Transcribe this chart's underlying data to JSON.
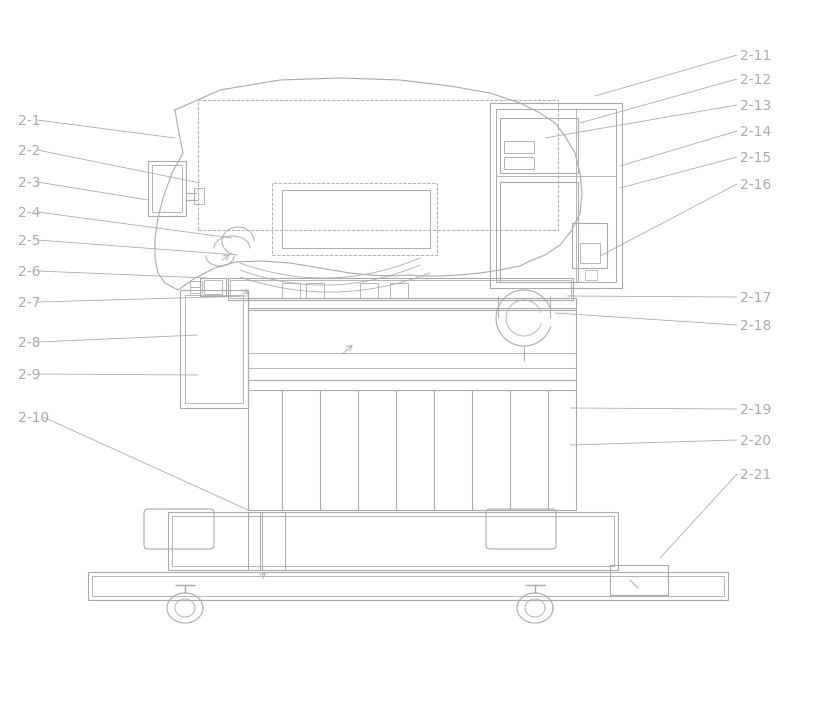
{
  "bg_color": "#ffffff",
  "line_color": "#aaaaaa",
  "label_color": "#aaaaaa",
  "fig_w": 8.4,
  "fig_h": 7.28,
  "dpi": 100,
  "left_labels": [
    [
      "2-1",
      18,
      607,
      175,
      590
    ],
    [
      "2-2",
      18,
      577,
      200,
      545
    ],
    [
      "2-3",
      18,
      545,
      148,
      528
    ],
    [
      "2-4",
      18,
      515,
      232,
      490
    ],
    [
      "2-5",
      18,
      487,
      238,
      473
    ],
    [
      "2-6",
      18,
      456,
      207,
      450
    ],
    [
      "2-7",
      18,
      425,
      248,
      432
    ],
    [
      "2-8",
      18,
      385,
      198,
      393
    ],
    [
      "2-9",
      18,
      353,
      198,
      353
    ],
    [
      "2-10",
      18,
      310,
      248,
      218
    ]
  ],
  "right_labels": [
    [
      "2-11",
      740,
      672,
      595,
      632
    ],
    [
      "2-12",
      740,
      648,
      580,
      605
    ],
    [
      "2-13",
      740,
      622,
      545,
      590
    ],
    [
      "2-14",
      740,
      596,
      620,
      562
    ],
    [
      "2-15",
      740,
      570,
      620,
      540
    ],
    [
      "2-16",
      740,
      543,
      600,
      472
    ],
    [
      "2-17",
      740,
      430,
      567,
      432
    ],
    [
      "2-18",
      740,
      402,
      555,
      415
    ],
    [
      "2-19",
      740,
      318,
      570,
      320
    ],
    [
      "2-20",
      740,
      287,
      570,
      283
    ],
    [
      "2-21",
      740,
      253,
      660,
      170
    ]
  ]
}
